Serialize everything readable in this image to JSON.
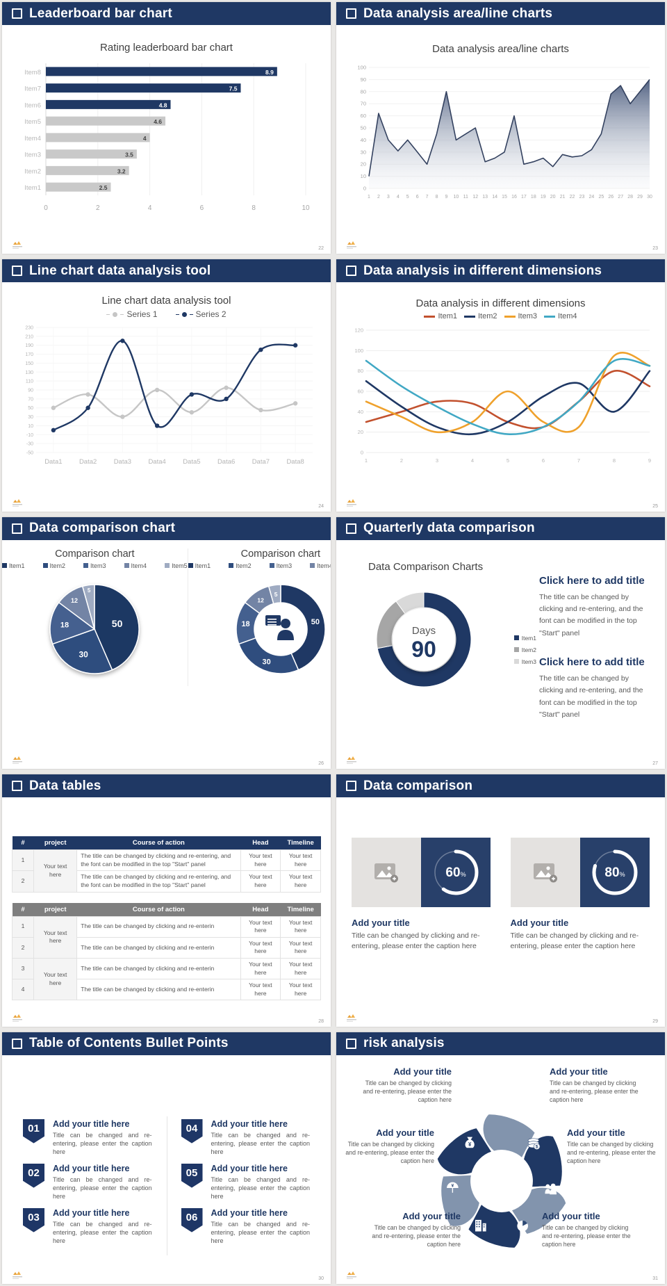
{
  "page": {
    "background": "#e9e8e6",
    "accent_navy": "#1f3864"
  },
  "slides": [
    {
      "header": "Leaderboard bar chart",
      "page_num": "22",
      "chart_data": {
        "type": "bar",
        "orientation": "horizontal",
        "title": "Rating leaderboard bar chart",
        "categories": [
          "Item8",
          "Item7",
          "Item6",
          "Item5",
          "Item4",
          "Item3",
          "Item2",
          "Item1"
        ],
        "values": [
          8.9,
          7.5,
          4.8,
          4.6,
          4,
          3.5,
          3.2,
          2.5
        ],
        "bar_colors": [
          "#1f3864",
          "#1f3864",
          "#1f3864",
          "#c9c9c9",
          "#c9c9c9",
          "#c9c9c9",
          "#c9c9c9",
          "#c9c9c9"
        ],
        "xlim": [
          0,
          10
        ],
        "xticks": [
          0,
          2,
          4,
          6,
          8,
          10
        ],
        "grid": "vertical"
      }
    },
    {
      "header": "Data analysis area/line charts",
      "page_num": "23",
      "chart_data": {
        "type": "area",
        "title": "Data analysis area/line charts",
        "x": [
          1,
          2,
          3,
          4,
          5,
          6,
          7,
          8,
          9,
          10,
          11,
          12,
          13,
          14,
          15,
          16,
          17,
          18,
          19,
          20,
          21,
          22,
          23,
          24,
          25,
          26,
          27,
          28,
          29,
          30
        ],
        "values": [
          10,
          62,
          40,
          31,
          40,
          30,
          20,
          45,
          80,
          40,
          45,
          50,
          22,
          25,
          30,
          60,
          20,
          22,
          25,
          18,
          28,
          26,
          27,
          32,
          45,
          78,
          85,
          70,
          80,
          90
        ],
        "ylim": [
          0,
          100
        ],
        "ytick_step": 10,
        "grid": "horizontal",
        "fill_top_color": "#4a5b7d",
        "line_color": "#33415f"
      }
    },
    {
      "header": "Line chart data analysis tool",
      "page_num": "24",
      "chart_data": {
        "type": "line",
        "smooth": true,
        "title": "Line chart data analysis tool",
        "categories": [
          "Data1",
          "Data2",
          "Data3",
          "Data4",
          "Data5",
          "Data6",
          "Data7",
          "Data8"
        ],
        "series": [
          {
            "name": "Series 1",
            "color": "#c6c6c6",
            "values": [
              50,
              80,
              30,
              90,
              40,
              95,
              45,
              60
            ]
          },
          {
            "name": "Series 2",
            "color": "#1f3864",
            "values": [
              0,
              50,
              200,
              10,
              80,
              70,
              180,
              190
            ]
          }
        ],
        "ylim": [
          -50,
          230
        ],
        "ytick_step": 20,
        "legend_position": "top"
      }
    },
    {
      "header": "Data analysis in different dimensions",
      "page_num": "25",
      "chart_data": {
        "type": "line",
        "smooth": true,
        "title": "Data analysis in different dimensions",
        "x": [
          1,
          2,
          3,
          4,
          5,
          6,
          7,
          8,
          9
        ],
        "series": [
          {
            "name": "Item1",
            "color": "#c2512e",
            "values": [
              30,
              40,
              50,
              48,
              30,
              25,
              50,
              80,
              65
            ]
          },
          {
            "name": "Item2",
            "color": "#1f3864",
            "values": [
              70,
              45,
              25,
              18,
              30,
              55,
              68,
              40,
              80
            ]
          },
          {
            "name": "Item3",
            "color": "#efa12c",
            "values": [
              50,
              35,
              20,
              30,
              60,
              30,
              25,
              95,
              85
            ]
          },
          {
            "name": "Item4",
            "color": "#41a8c4",
            "values": [
              90,
              65,
              45,
              28,
              18,
              25,
              50,
              90,
              85
            ]
          }
        ],
        "ylim": [
          0,
          120
        ],
        "ytick_step": 20,
        "legend_position": "top"
      }
    },
    {
      "header": "Data comparison chart",
      "page_num": "26",
      "charts": [
        {
          "title": "Comparison chart",
          "style": "pie"
        },
        {
          "title": "Comparison chart",
          "style": "donut",
          "center_icon": "presenter-icon"
        }
      ],
      "chart_data": {
        "type": "pie",
        "legend": [
          "Item1",
          "Item2",
          "Item3",
          "Item4",
          "Item5"
        ],
        "values": [
          50,
          30,
          18,
          12,
          5
        ],
        "labels": [
          "50",
          "30",
          "18",
          "12",
          "5"
        ],
        "colors": [
          "#1f3864",
          "#2f4d7e",
          "#44608f",
          "#7384a5",
          "#9fabc2"
        ]
      }
    },
    {
      "header": "Quarterly data comparison",
      "page_num": "27",
      "label": "Data Comparison Charts",
      "chart_data": {
        "type": "donut",
        "center_top": "Days",
        "center_value": "90",
        "legend": [
          "Item1",
          "Item2",
          "Item3"
        ],
        "values": [
          72,
          18,
          10
        ],
        "colors": [
          "#1f3864",
          "#a6a6a6",
          "#d9d9d9"
        ]
      },
      "blocks": [
        {
          "title": "Click here to add title",
          "body": "The title can be changed by clicking and re-entering, and the font can be modified in the top \"Start\" panel"
        },
        {
          "title": "Click here to add title",
          "body": "The title can be changed by clicking and re-entering, and the font can be modified in the top \"Start\" panel"
        }
      ]
    },
    {
      "header": "Data tables",
      "page_num": "28",
      "tables": [
        {
          "style": "navy",
          "columns": [
            "#",
            "project",
            "Course of action",
            "Head",
            "Timeline"
          ],
          "project_text": "Your text here",
          "merge_groups": [
            [
              0,
              1
            ]
          ],
          "rows": [
            {
              "num": "1",
              "course": "The title can be changed by clicking and re-entering, and the font can be modified in the top \"Start\" panel",
              "head": "Your text here",
              "timeline": "Your text here"
            },
            {
              "num": "2",
              "course": "The title can be changed by clicking and re-entering, and the font can be modified in the top \"Start\" panel",
              "head": "Your text here",
              "timeline": "Your text here"
            }
          ]
        },
        {
          "style": "gray",
          "columns": [
            "#",
            "project",
            "Course of action",
            "Head",
            "Timeline"
          ],
          "project_text": "Your text here",
          "merge_groups": [
            [
              0,
              1
            ],
            [
              2,
              3
            ]
          ],
          "rows": [
            {
              "num": "1",
              "course": "The title can be changed by clicking and re-enterin",
              "head": "Your text here",
              "timeline": "Your text here"
            },
            {
              "num": "2",
              "course": "The title can be changed by clicking and re-enterin",
              "head": "Your text here",
              "timeline": "Your text here"
            },
            {
              "num": "3",
              "course": "The title can be changed by clicking and re-enterin",
              "head": "Your text here",
              "timeline": "Your text here"
            },
            {
              "num": "4",
              "course": "The title can be changed by clicking and re-enterin",
              "head": "Your text here",
              "timeline": "Your text here"
            }
          ]
        }
      ]
    },
    {
      "header": "Data comparison",
      "page_num": "29",
      "cards": [
        {
          "percent": 60,
          "unit": "%",
          "title": "Add your title",
          "caption": "Title can be changed by clicking and re-entering, please enter the caption here",
          "placeholder_icon": "add-image-icon"
        },
        {
          "percent": 80,
          "unit": "%",
          "title": "Add your title",
          "caption": "Title can be changed by clicking and re-entering, please enter the caption here",
          "placeholder_icon": "add-image-icon"
        }
      ]
    },
    {
      "header": "Table of Contents Bullet Points",
      "page_num": "30",
      "items": [
        {
          "num": "01",
          "title": "Add your title here",
          "caption": "Title can be changed and re-entering, please enter the caption here"
        },
        {
          "num": "02",
          "title": "Add your title here",
          "caption": "Title can be changed and re-entering, please enter the caption here"
        },
        {
          "num": "03",
          "title": "Add your title here",
          "caption": "Title can be changed and re-entering, please enter the caption here"
        },
        {
          "num": "04",
          "title": "Add your title here",
          "caption": "Title can be changed and re-entering, please enter the caption here"
        },
        {
          "num": "05",
          "title": "Add your title here",
          "caption": "Title can be changed and re-entering, please enter the caption here"
        },
        {
          "num": "06",
          "title": "Add your title here",
          "caption": "Title can be changed and re-entering, please enter the caption here"
        }
      ]
    },
    {
      "header": "risk analysis",
      "page_num": "31",
      "icons": [
        "money-bag-icon",
        "coins-icon",
        "people-icon",
        "pie-chart-icon",
        "building-icon",
        "umbrella-icon"
      ],
      "labels": [
        {
          "title": "Add your title",
          "caption": "Title can be changed by clicking and re-entering, please enter the caption here"
        },
        {
          "title": "Add your title",
          "caption": "Title can be changed by clicking and re-entering, please enter the caption here"
        },
        {
          "title": "Add your title",
          "caption": "Title can be changed by clicking and re-entering, please enter the caption here"
        },
        {
          "title": "Add your title",
          "caption": "Title can be changed by clicking and re-entering, please enter the caption here"
        },
        {
          "title": "Add your title",
          "caption": "Title can be changed by clicking and re-entering, please enter the caption here"
        },
        {
          "title": "Add your title",
          "caption": "Title can be changed by clicking and re-entering, please enter the caption here"
        }
      ]
    }
  ]
}
